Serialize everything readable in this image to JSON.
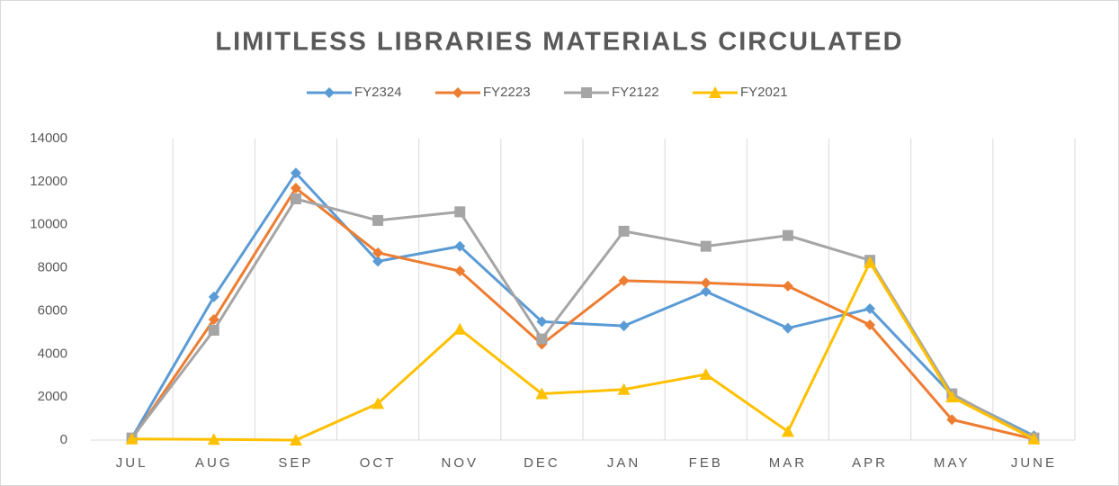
{
  "chart_data": {
    "type": "line",
    "title": "LIMITLESS LIBRARIES MATERIALS CIRCULATED",
    "categories": [
      "JUL",
      "AUG",
      "SEP",
      "OCT",
      "NOV",
      "DEC",
      "JAN",
      "FEB",
      "MAR",
      "APR",
      "MAY",
      "JUNE"
    ],
    "series": [
      {
        "name": "FY2324",
        "color": "#5b9bd5",
        "marker": "diamond",
        "values": [
          100,
          6650,
          12400,
          8300,
          9000,
          5500,
          5300,
          6900,
          5200,
          6100,
          2100,
          200
        ]
      },
      {
        "name": "FY2223",
        "color": "#ed7d31",
        "marker": "diamond",
        "values": [
          50,
          5600,
          11700,
          8700,
          7850,
          4450,
          7400,
          7300,
          7150,
          5350,
          950,
          50
        ]
      },
      {
        "name": "FY2122",
        "color": "#a5a5a5",
        "marker": "square",
        "values": [
          100,
          5100,
          11200,
          10200,
          10600,
          4700,
          9700,
          9000,
          9500,
          8350,
          2150,
          100
        ]
      },
      {
        "name": "FY2021",
        "color": "#ffc000",
        "marker": "triangle",
        "values": [
          50,
          30,
          0,
          1700,
          5150,
          2150,
          2350,
          3050,
          400,
          8250,
          2000,
          50
        ]
      }
    ],
    "ylim": [
      0,
      14000
    ],
    "yticks": [
      0,
      2000,
      4000,
      6000,
      8000,
      10000,
      12000,
      14000
    ],
    "grid": "vertical",
    "legend": "top"
  }
}
